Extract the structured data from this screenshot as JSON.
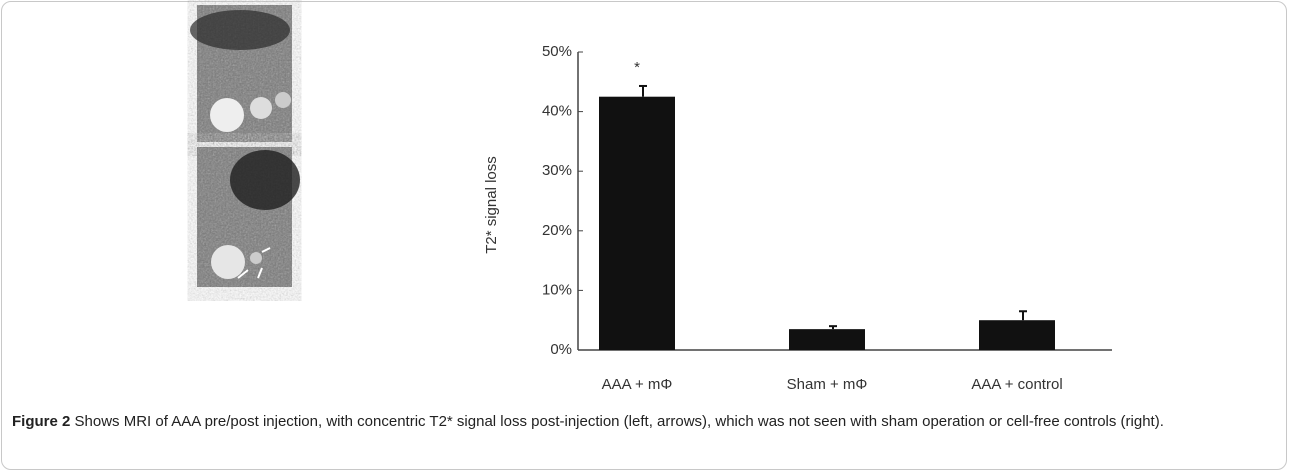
{
  "chart_data": {
    "type": "bar",
    "ylabel": "T2* signal loss",
    "categories": [
      "AAA + mΦ",
      "Sham + mΦ",
      "AAA + control"
    ],
    "values": [
      42.5,
      3.5,
      5
    ],
    "errors": [
      1.8,
      0.5,
      1.5
    ],
    "value_annotations": [
      "*",
      null,
      null
    ],
    "color": "#111111",
    "ylim": [
      0,
      50
    ],
    "yticks": [
      {
        "value": 0,
        "label": "0%"
      },
      {
        "value": 10,
        "label": "10%"
      },
      {
        "value": 20,
        "label": "20%"
      },
      {
        "value": 30,
        "label": "30%"
      },
      {
        "value": 40,
        "label": "40%"
      },
      {
        "value": 50,
        "label": "50%"
      }
    ],
    "grid": false
  },
  "caption": {
    "label": "Figure 2",
    "text": "Shows MRI of AAA pre/post injection, with concentric T2* signal loss post-injection (left, arrows), which was not seen with sham operation or cell-free controls (right)."
  }
}
